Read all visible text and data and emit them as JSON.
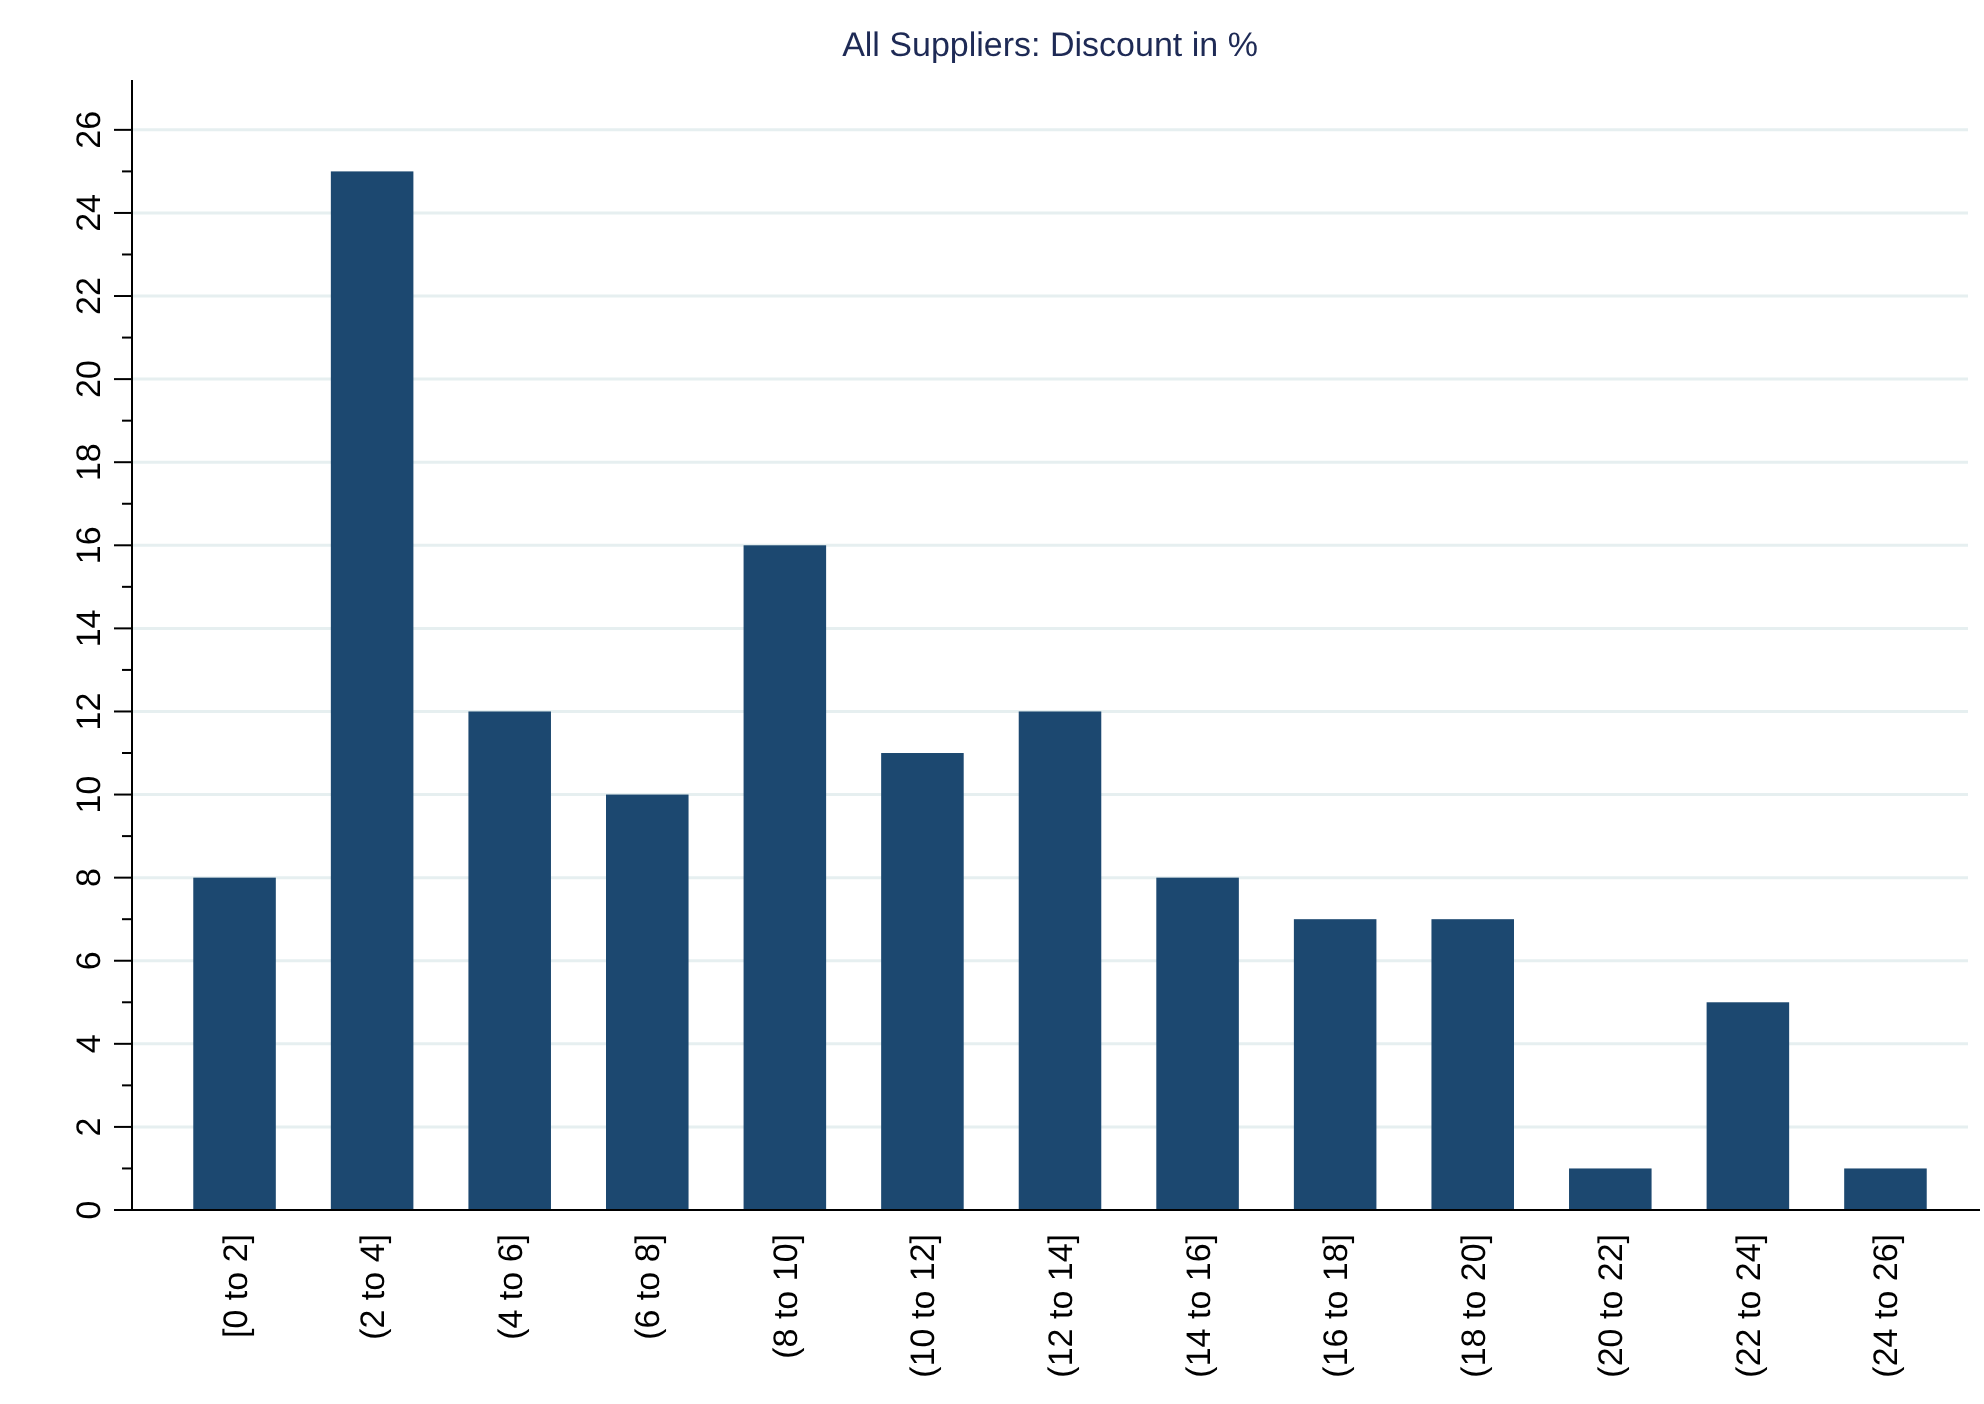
{
  "chart_data": {
    "type": "bar",
    "title": "All Suppliers: Discount in %",
    "categories": [
      "[0 to 2]",
      "(2 to 4]",
      "(4 to 6]",
      "(6 to 8]",
      "(8 to 10]",
      "(10 to 12]",
      "(12 to 14]",
      "(14 to 16]",
      "(16 to 18]",
      "(18 to 20]",
      "(20 to 22]",
      "(22 to 24]",
      "(24 to 26]"
    ],
    "values": [
      8,
      25,
      12,
      10,
      16,
      11,
      12,
      8,
      7,
      7,
      1,
      5,
      1
    ],
    "color": "#1c4870",
    "ylim": [
      0,
      27.2
    ],
    "yticks": [
      0,
      {
        "value": 1,
        "label": null
      },
      2,
      {
        "value": 3,
        "label": null
      },
      4,
      {
        "value": 5,
        "label": null
      },
      6,
      {
        "value": 7,
        "label": null
      },
      8,
      {
        "value": 9,
        "label": null
      },
      10,
      {
        "value": 11,
        "label": null
      },
      12,
      {
        "value": 13,
        "label": null
      },
      14,
      {
        "value": 15,
        "label": null
      },
      16,
      {
        "value": 17,
        "label": null
      },
      18,
      {
        "value": 19,
        "label": null
      },
      20,
      {
        "value": 21,
        "label": null
      },
      22,
      {
        "value": 23,
        "label": null
      },
      24,
      {
        "value": 25,
        "label": null
      },
      26
    ],
    "grid": "y"
  }
}
